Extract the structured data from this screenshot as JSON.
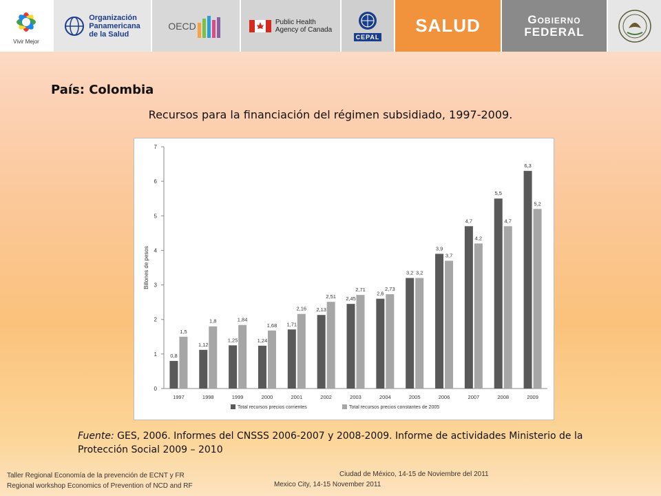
{
  "logos": {
    "vivir_mejor": "Vivir Mejor",
    "ops_line1": "Organización",
    "ops_line2": "Panamericana",
    "ops_line3": "de la Salud",
    "oecd": "OECD",
    "phac_line1": "Public Health",
    "phac_line2": "Agency of Canada",
    "cepal": "CEPAL",
    "salud": "SALUD",
    "gobierno_line1": "Gobierno",
    "gobierno_line2": "Federal"
  },
  "heading": "País: Colombia",
  "subtitle": "Recursos para la financiación del régimen subsidiado, 1997-2009.",
  "source": {
    "label": "Fuente:",
    "text": " GES, 2006. Informes del CNSSS 2006-2007 y 2008-2009. Informe de actividades Ministerio de la Protección Social 2009 – 2010"
  },
  "footer": {
    "left_line1": "Taller Regional Economía de la prevención de ECNT y FR",
    "left_line2": "Regional workshop Economics of Prevention of NCD and RF",
    "right_line1": "Ciudad de México, 14-15 de Noviembre del 2011",
    "right_line2": "Mexico City, 14-15 November 2011"
  },
  "colors": {
    "series_corrientes": "#595959",
    "series_constantes": "#a6a6a6",
    "salud_bg": "#f1933c",
    "gobierno_bg": "#8a8a8a"
  },
  "chart_data": {
    "type": "bar",
    "ylabel": "Billones de pesos",
    "ylim": [
      0,
      7
    ],
    "yticks": [
      0,
      1,
      2,
      3,
      4,
      5,
      6,
      7
    ],
    "grid": false,
    "legend_position": "bottom",
    "categories": [
      "1997",
      "1998",
      "1999",
      "2000",
      "2001",
      "2002",
      "2003",
      "2004",
      "2005",
      "2006",
      "2007",
      "2008",
      "2009"
    ],
    "series": [
      {
        "name": "Total recursos precios corrientes",
        "values": [
          0.8,
          1.12,
          1.25,
          1.24,
          1.71,
          2.13,
          2.45,
          2.6,
          3.2,
          3.9,
          4.7,
          5.5,
          6.3
        ],
        "labels": [
          "0,8",
          "1,12",
          "1,25",
          "1,24",
          "1,71",
          "2,13",
          "2,45",
          "2,6",
          "3,2",
          "3,9",
          "4,7",
          "5,5",
          "6,3"
        ]
      },
      {
        "name": "Total recursos precios constantes de 2005",
        "values": [
          1.5,
          1.8,
          1.84,
          1.68,
          2.16,
          2.51,
          2.71,
          2.73,
          3.2,
          3.7,
          4.2,
          4.7,
          5.2
        ],
        "labels": [
          "1,5",
          "1,8",
          "1,84",
          "1,68",
          "2,16",
          "2,51",
          "2,71",
          "2,73",
          "3,2",
          "3,7",
          "4,2",
          "4,7",
          "5,2"
        ]
      }
    ]
  }
}
